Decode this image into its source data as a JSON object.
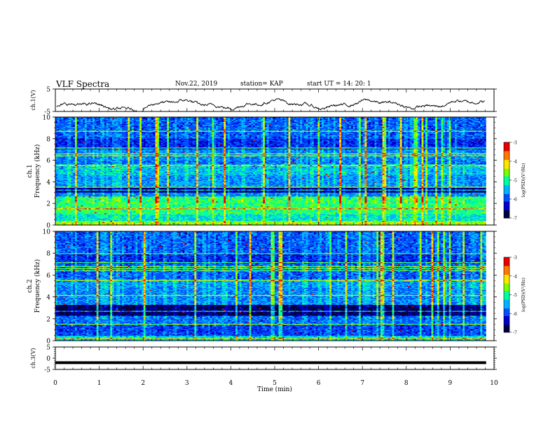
{
  "header": {
    "title": "VLF Spectra",
    "date": "Nov.22, 2019",
    "station": "station= KAP",
    "start": "start  UT =   14: 20: 1"
  },
  "colors": {
    "trace": "#000000",
    "colormap": [
      "#00003c",
      "#0000c8",
      "#0050ff",
      "#00b4ff",
      "#00ffa0",
      "#78ff00",
      "#ffe600",
      "#ff7800",
      "#e60000",
      "#ffffff"
    ]
  },
  "chart_data": [
    {
      "type": "line",
      "name": "ch1-voltage",
      "ylabel": "ch.1(V)",
      "y_ticks": [
        "5",
        "-5"
      ],
      "xlim": [
        0,
        10
      ],
      "ylim": [
        -5,
        5
      ]
    },
    {
      "type": "heatmap",
      "name": "ch1-spectrogram",
      "ylabel": "ch.1\nFrequency (kHz)",
      "y_ticks": [
        "0",
        "2",
        "4",
        "6",
        "8",
        "10"
      ],
      "ylim": [
        0,
        10
      ],
      "xlim": [
        0,
        10
      ],
      "colorbar": {
        "label": "log(PSD)(V²/Hz)",
        "ticks": [
          "-3",
          "-4",
          "-5",
          "-6",
          "-7"
        ],
        "range": [
          -7,
          -3
        ]
      }
    },
    {
      "type": "heatmap",
      "name": "ch2-spectrogram",
      "ylabel": "ch.2\nFrequency (kHz)",
      "y_ticks": [
        "0",
        "2",
        "4",
        "6",
        "8",
        "10"
      ],
      "ylim": [
        0,
        10
      ],
      "xlim": [
        0,
        10
      ],
      "colorbar": {
        "label": "log(PSD)(V²/Hz)",
        "ticks": [
          "-3",
          "-4",
          "-5",
          "-6",
          "-7"
        ],
        "range": [
          -7,
          -3
        ]
      }
    },
    {
      "type": "line",
      "name": "ch3-voltage",
      "ylabel": "ch.3(V)",
      "y_ticks": [
        "5",
        "0",
        "-5"
      ],
      "xlim": [
        0,
        10
      ],
      "ylim": [
        -5,
        5
      ],
      "constant_value": -2
    }
  ],
  "x_axis": {
    "label": "Time  (min)",
    "ticks": [
      "0",
      "1",
      "2",
      "3",
      "4",
      "5",
      "6",
      "7",
      "8",
      "9",
      "10"
    ],
    "data_end": 9.82
  }
}
